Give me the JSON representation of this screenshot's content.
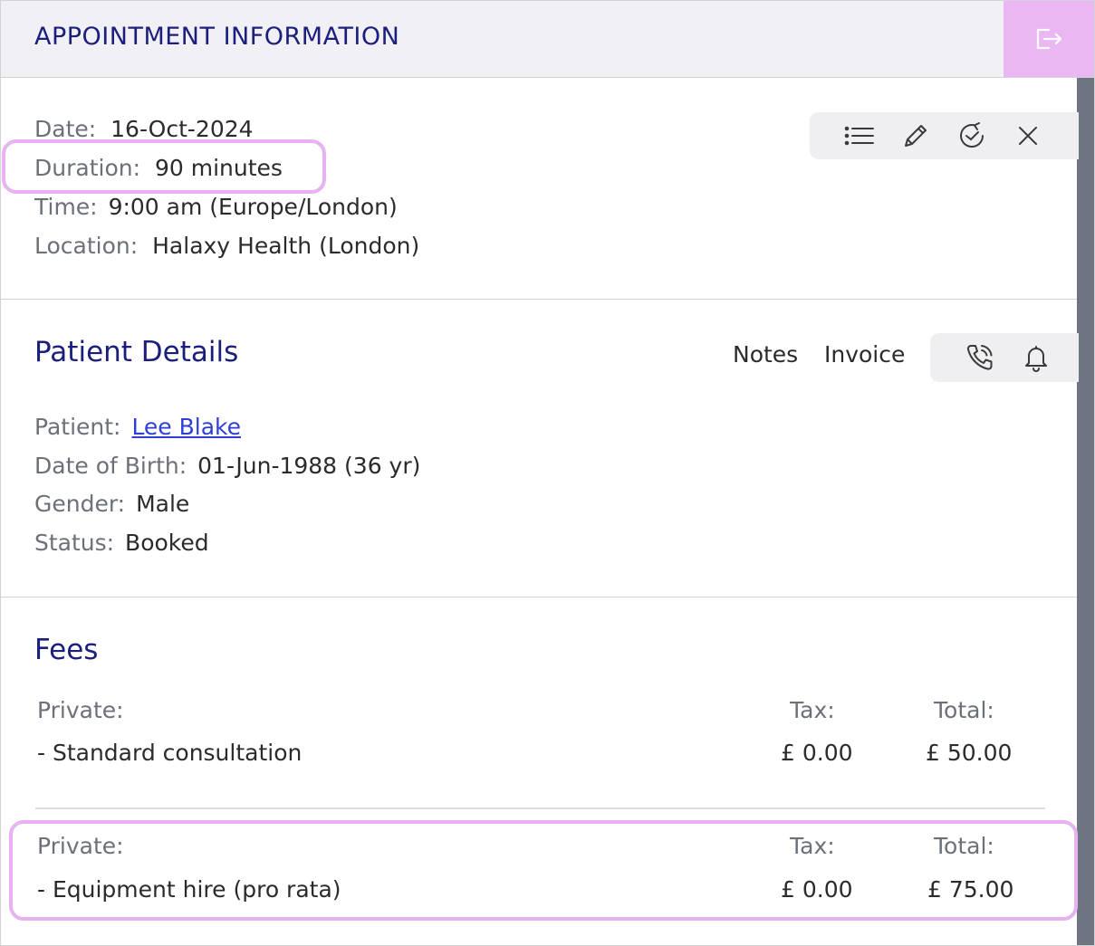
{
  "header": {
    "title": "APPOINTMENT INFORMATION"
  },
  "appointment": {
    "date_label": "Date:",
    "date_value": "16-Oct-2024",
    "duration_label": "Duration:",
    "duration_value": "90 minutes",
    "time_label": "Time:",
    "time_value": "9:00 am (Europe/London)",
    "location_label": "Location:",
    "location_value": "Halaxy Health (London)"
  },
  "toolbar_icons": [
    "list-icon",
    "pencil-icon",
    "clock-reschedule-icon",
    "close-icon"
  ],
  "patient": {
    "section_title": "Patient Details",
    "notes_link": "Notes",
    "invoice_link": "Invoice",
    "patient_label": "Patient:",
    "patient_value": "Lee Blake",
    "dob_label": "Date of Birth:",
    "dob_value": "01-Jun-1988 (36 yr)",
    "gender_label": "Gender:",
    "gender_value": "Male",
    "status_label": "Status:",
    "status_value": "Booked"
  },
  "fees": {
    "section_title": "Fees",
    "items": [
      {
        "type_label": "Private:",
        "tax_label": "Tax:",
        "total_label": "Total:",
        "description": "- Standard consultation",
        "tax": "£ 0.00",
        "total": "£ 50.00"
      },
      {
        "type_label": "Private:",
        "tax_label": "Tax:",
        "total_label": "Total:",
        "description": "- Equipment hire (pro rata)",
        "tax": "£ 0.00",
        "total": "£ 75.00"
      }
    ]
  },
  "colors": {
    "accent": "#eab7f2",
    "heading": "#1b1e7d",
    "link": "#2f3fd3",
    "highlight": "#e6b3f0"
  }
}
